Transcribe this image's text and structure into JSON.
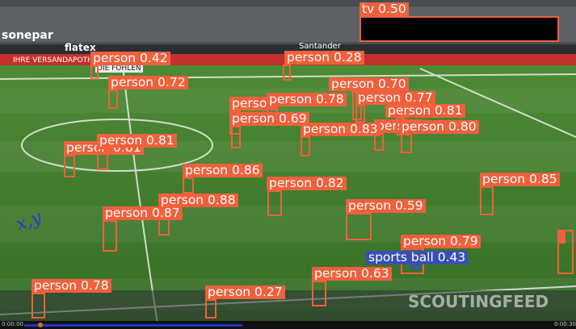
{
  "detections": [
    "person",
    "person",
    "person 0.81",
    "tv 0.50",
    "person 0.42",
    "person 0.28",
    "person 0.72",
    "person 0.70",
    "person 0.77",
    "person 0.78",
    "person 0.69",
    "person 0.81",
    "person 0.83",
    "person 0.80",
    "person 0.81",
    "person 0.86",
    "person 0.82",
    "person 0.85",
    "person 0.88",
    "person 0.87",
    "person 0.59",
    "person 0.79",
    "sports ball 0.43",
    "person 0.63",
    "person 0.78",
    "person 0.27"
  ],
  "overlay": {
    "annotation": "x,y",
    "watermark": "SCOUTINGFEED",
    "time_start": "0:00:00",
    "time_end": "0:00:30"
  },
  "banners": {
    "left": "sonepar",
    "sponsor": "flatex",
    "bank": "Santander",
    "board": "DIE FOHLEN",
    "ad": "IHRE VERSANDAPOTHEKE"
  }
}
